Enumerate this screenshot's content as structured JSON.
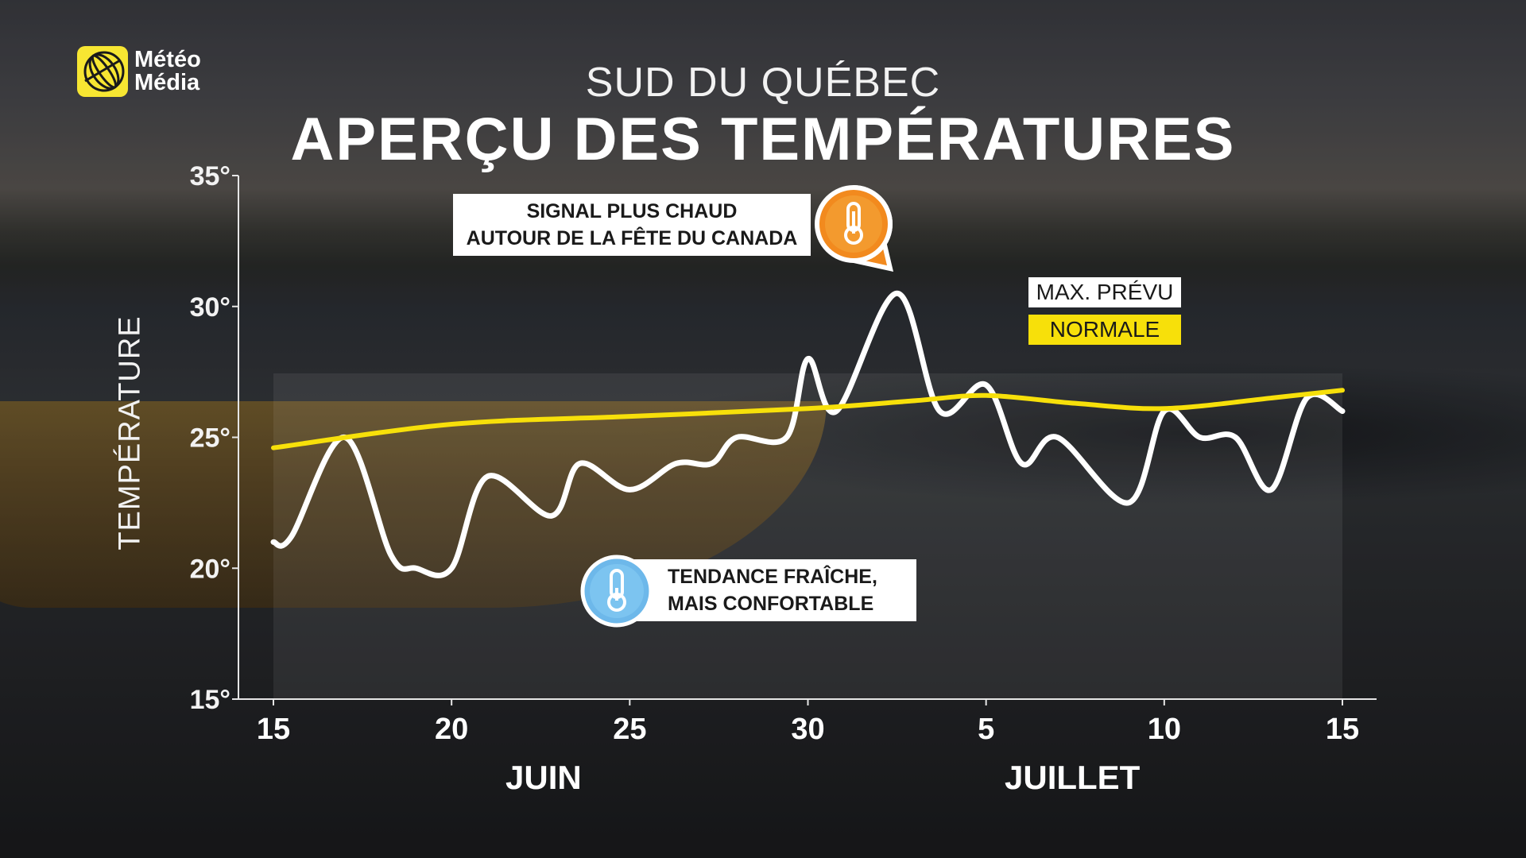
{
  "brand": {
    "line1": "Météo",
    "line2": "Média"
  },
  "header": {
    "subtitle": "SUD DU QUÉBEC",
    "title": "APERÇU DES TEMPÉRATURES"
  },
  "colors": {
    "max_line": "#ffffff",
    "normal_line": "#f7e00a",
    "warm_icon": "#f28a1e",
    "cool_icon": "#6db8ea"
  },
  "callouts": {
    "warm": {
      "line1": "SIGNAL PLUS CHAUD",
      "line2": "AUTOUR DE LA FÊTE DU CANADA",
      "icon": "thermometer-hot-icon"
    },
    "cool": {
      "line1": "TENDANCE FRAÎCHE,",
      "line2": "MAIS CONFORTABLE",
      "icon": "thermometer-cool-icon"
    }
  },
  "legend": {
    "max": "MAX. PRÉVU",
    "normal": "NORMALE"
  },
  "months": {
    "june": "JUIN",
    "july": "JUILLET"
  },
  "chart_data": {
    "type": "line",
    "ylabel": "TEMPÉRATURE",
    "ylim": [
      15,
      35
    ],
    "yticks": [
      15,
      20,
      25,
      30,
      35
    ],
    "ytick_labels": [
      "15°",
      "20°",
      "25°",
      "30°",
      "35°"
    ],
    "xlim": [
      0,
      30
    ],
    "xticks": [
      0,
      5,
      10,
      15,
      20,
      25,
      30
    ],
    "xtick_labels": [
      "15",
      "20",
      "25",
      "30",
      "5",
      "10",
      "15"
    ],
    "grid": false,
    "legend_position": "top-right",
    "series": [
      {
        "name": "MAX. PRÉVU",
        "x": [
          0,
          0.5,
          2,
          3.3,
          4,
          5,
          6,
          7.8,
          8.6,
          10,
          11.3,
          12.3,
          13,
          14.4,
          15,
          15.8,
          17.5,
          18.7,
          20,
          21,
          22,
          24,
          25,
          26,
          27,
          28,
          29,
          30
        ],
        "values": [
          21,
          21.2,
          25,
          20.5,
          20,
          20,
          23.5,
          22,
          24,
          23,
          24,
          24,
          25,
          25,
          28,
          26,
          30.5,
          26,
          27,
          24,
          25,
          22.5,
          26,
          25,
          25,
          23,
          26.5,
          26
        ]
      },
      {
        "name": "NORMALE",
        "x": [
          0,
          5,
          10,
          15,
          18,
          20,
          22.5,
          25,
          28,
          30
        ],
        "values": [
          24.6,
          25.5,
          25.8,
          26.1,
          26.4,
          26.6,
          26.3,
          26.1,
          26.5,
          26.8
        ]
      }
    ]
  }
}
